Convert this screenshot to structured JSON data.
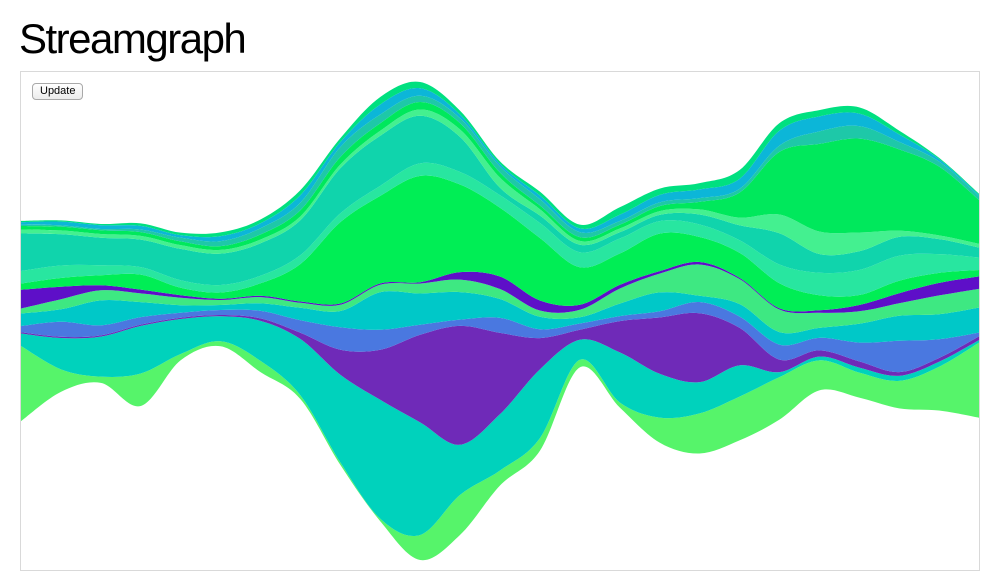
{
  "page": {
    "title": "Streamgraph",
    "update_label": "Update"
  },
  "chart_data": {
    "type": "area",
    "stacking": "streamgraph (wiggle offset, inside-out order)",
    "title": "Streamgraph",
    "xlabel": "",
    "ylabel": "",
    "grid": false,
    "legend": "none",
    "x": [
      0,
      1,
      2,
      3,
      4,
      5,
      6,
      7,
      8,
      9,
      10,
      11,
      12,
      13,
      14,
      15,
      16,
      17,
      18,
      19,
      20,
      21,
      22,
      23,
      24
    ],
    "series": [
      {
        "color": "#56f46a",
        "values": [
          6.0,
          1.8,
          0.5,
          2.6,
          0.5,
          0.4,
          0.9,
          0.3,
          0.2,
          0.2,
          2.0,
          3.2,
          1.2,
          1.0,
          0.6,
          0.4,
          2.0,
          3.2,
          3.5,
          3.4,
          2.4,
          2.0,
          2.2,
          3.5,
          6.0
        ]
      },
      {
        "color": "#00d2bc",
        "values": [
          1.0,
          2.5,
          3.2,
          3.8,
          2.8,
          2.0,
          3.2,
          4.5,
          7.0,
          9.5,
          9.0,
          4.0,
          4.5,
          5.5,
          1.6,
          4.0,
          3.5,
          2.5,
          2.5,
          0.4,
          0.3,
          0.4,
          0.4,
          0.4,
          0.2
        ]
      },
      {
        "color": "#6f2ab8",
        "values": [
          0.1,
          0.1,
          0.1,
          0.1,
          0.1,
          0.1,
          0.2,
          0.5,
          2.0,
          4.0,
          7.0,
          9.5,
          6.5,
          2.5,
          0.8,
          2.5,
          4.5,
          5.5,
          3.0,
          1.0,
          0.5,
          0.5,
          0.3,
          0.3,
          0.3
        ]
      },
      {
        "color": "#4a78e0",
        "values": [
          0.5,
          1.2,
          0.8,
          0.6,
          0.4,
          0.4,
          0.6,
          1.0,
          1.8,
          1.6,
          0.8,
          0.5,
          1.2,
          0.7,
          0.5,
          0.4,
          0.5,
          0.9,
          0.9,
          1.2,
          1.0,
          1.5,
          2.5,
          1.5,
          0.3
        ]
      },
      {
        "color": "#00c8c8",
        "values": [
          1.0,
          1.0,
          2.0,
          1.2,
          0.6,
          0.4,
          0.6,
          1.0,
          1.3,
          3.0,
          2.5,
          2.2,
          1.5,
          1.0,
          0.5,
          1.0,
          1.5,
          0.5,
          1.0,
          1.0,
          0.8,
          1.5,
          2.0,
          2.0,
          2.0
        ]
      },
      {
        "color": "#3ee882",
        "values": [
          0.4,
          0.8,
          0.8,
          0.7,
          0.6,
          0.4,
          0.5,
          0.4,
          0.5,
          0.6,
          0.8,
          1.0,
          0.8,
          0.5,
          0.6,
          1.2,
          1.5,
          2.5,
          2.0,
          1.8,
          1.2,
          1.0,
          1.0,
          1.5,
          1.5
        ]
      },
      {
        "color": "#5e0fc8",
        "values": [
          1.5,
          1.0,
          0.4,
          0.3,
          0.2,
          0.1,
          0.1,
          0.1,
          0.1,
          0.1,
          0.1,
          0.6,
          1.0,
          0.8,
          0.4,
          0.3,
          0.2,
          0.2,
          0.1,
          0.1,
          0.2,
          0.5,
          0.8,
          1.0,
          1.0
        ]
      },
      {
        "color": "#00ee55",
        "values": [
          0.5,
          0.7,
          0.8,
          1.2,
          0.6,
          0.5,
          1.0,
          3.0,
          6.5,
          7.0,
          8.5,
          7.0,
          5.5,
          5.0,
          3.0,
          2.5,
          3.0,
          2.0,
          2.0,
          2.0,
          1.2,
          0.8,
          1.0,
          0.8,
          0.5
        ]
      },
      {
        "color": "#28e6a0",
        "values": [
          1.0,
          1.0,
          0.8,
          0.6,
          0.6,
          0.6,
          0.6,
          0.7,
          0.7,
          0.8,
          1.0,
          1.0,
          1.0,
          1.2,
          1.2,
          1.2,
          1.0,
          1.0,
          1.0,
          1.5,
          1.8,
          2.0,
          2.0,
          1.5,
          1.0
        ]
      },
      {
        "color": "#10d4ac",
        "values": [
          3.0,
          2.5,
          2.2,
          2.2,
          2.5,
          2.5,
          2.6,
          2.8,
          3.6,
          4.0,
          3.8,
          2.8,
          0.6,
          0.6,
          0.6,
          0.5,
          0.5,
          0.8,
          1.2,
          2.5,
          1.5,
          1.5,
          1.5,
          1.2,
          0.8
        ]
      },
      {
        "color": "#44f090",
        "values": [
          0.3,
          0.3,
          0.3,
          0.3,
          0.3,
          0.3,
          0.3,
          0.3,
          0.3,
          0.4,
          0.5,
          0.6,
          0.8,
          0.5,
          0.3,
          0.3,
          0.3,
          0.4,
          0.6,
          1.5,
          1.8,
          1.5,
          0.5,
          0.3,
          0.3
        ]
      },
      {
        "color": "#00e85c",
        "values": [
          0.3,
          0.3,
          0.3,
          0.3,
          0.3,
          0.3,
          0.4,
          0.5,
          0.6,
          0.6,
          0.6,
          0.5,
          0.4,
          0.3,
          0.3,
          0.3,
          0.4,
          0.6,
          2.0,
          5.0,
          7.0,
          7.5,
          6.5,
          5.5,
          3.5
        ]
      },
      {
        "color": "#1ec8a8",
        "values": [
          0.1,
          0.1,
          0.1,
          0.2,
          0.3,
          0.4,
          0.5,
          0.6,
          0.8,
          0.7,
          0.5,
          0.4,
          0.5,
          0.5,
          0.4,
          0.3,
          0.3,
          0.3,
          0.3,
          0.5,
          1.0,
          1.0,
          0.6,
          0.4,
          0.3
        ]
      },
      {
        "color": "#0cb6d8",
        "values": [
          0.2,
          0.3,
          0.3,
          0.3,
          0.2,
          0.4,
          0.4,
          0.6,
          0.4,
          0.8,
          0.6,
          0.3,
          0.2,
          0.3,
          0.3,
          0.5,
          0.6,
          0.7,
          0.8,
          1.2,
          1.2,
          1.0,
          0.6,
          0.2,
          0.1
        ]
      },
      {
        "color": "#00e080",
        "values": [
          0.1,
          0.1,
          0.1,
          0.2,
          0.2,
          0.3,
          0.3,
          0.4,
          0.3,
          0.6,
          0.5,
          0.3,
          0.2,
          0.3,
          0.3,
          0.6,
          0.5,
          0.5,
          0.7,
          0.6,
          0.5,
          0.5,
          0.3,
          0.1,
          0.1
        ]
      }
    ]
  }
}
